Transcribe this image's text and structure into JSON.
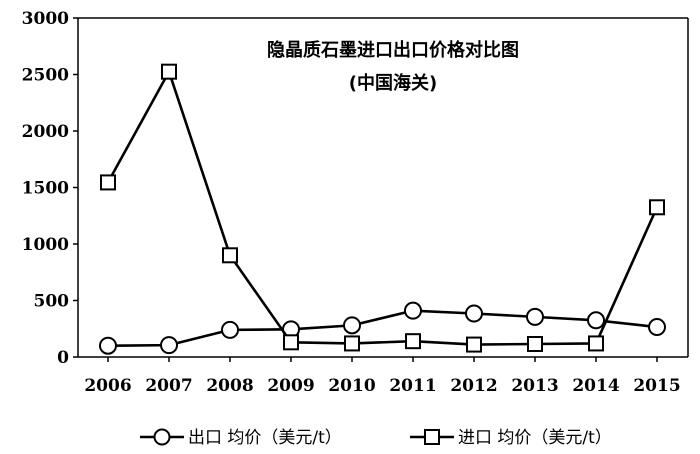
{
  "chart_data": {
    "type": "line",
    "title": "隐晶质石墨进口出口价格对比图",
    "subtitle": "(中国海关)",
    "xlabel": "",
    "ylabel": "",
    "categories": [
      "2006",
      "2007",
      "2008",
      "2009",
      "2010",
      "2011",
      "2012",
      "2013",
      "2014",
      "2015"
    ],
    "ylim": [
      0,
      3000
    ],
    "yticks": [
      0,
      500,
      1000,
      1500,
      2000,
      2500,
      3000
    ],
    "grid": false,
    "legend": "bottom",
    "series": [
      {
        "name": "出口 均价（美元/t）",
        "marker": "circle",
        "color": "#000000",
        "values": [
          100,
          105,
          240,
          245,
          280,
          410,
          385,
          355,
          325,
          265
        ]
      },
      {
        "name": "进口 均价（美元/t）",
        "marker": "square",
        "color": "#000000",
        "values": [
          1545,
          2525,
          900,
          130,
          120,
          140,
          110,
          115,
          120,
          1325
        ]
      }
    ]
  }
}
